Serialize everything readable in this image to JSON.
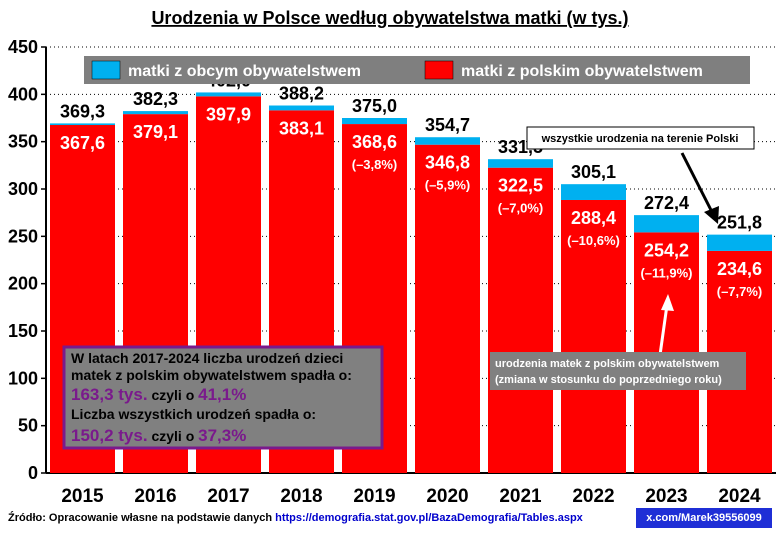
{
  "chart_data": {
    "type": "bar",
    "stacked": true,
    "title": "Urodzenia w Polsce według obywatelstwa matki (w tys.)",
    "ylim": [
      0,
      450
    ],
    "yticks": [
      "0",
      "50",
      "100",
      "150",
      "200",
      "250",
      "300",
      "350",
      "400",
      "450"
    ],
    "grid": true,
    "legend_position": "top",
    "categories": [
      "2015",
      "2016",
      "2017",
      "2018",
      "2019",
      "2020",
      "2021",
      "2022",
      "2023",
      "2024"
    ],
    "series": [
      {
        "name": "matki z polskim obywatelstwem",
        "color": "#ff0000",
        "values": [
          367.6,
          379.1,
          397.9,
          383.1,
          368.6,
          346.8,
          322.5,
          288.4,
          254.2,
          234.6
        ],
        "labels": [
          "367,6",
          "379,1",
          "397,9",
          "383,1",
          "368,6",
          "346,8",
          "322,5",
          "288,4",
          "254,2",
          "234,6"
        ]
      },
      {
        "name": "matki z obcym obywatelstwem",
        "color": "#00b0f0",
        "values": [
          1.7,
          3.2,
          4.1,
          5.1,
          6.4,
          7.9,
          9.0,
          16.7,
          18.2,
          17.2
        ]
      }
    ],
    "totals": [
      369.3,
      382.3,
      402.0,
      388.2,
      375.0,
      354.7,
      331.5,
      305.1,
      272.4,
      251.8
    ],
    "total_labels": [
      "369,3",
      "382,3",
      "402,0",
      "388,2",
      "375,0",
      "354,7",
      "331,5",
      "305,1",
      "272,4",
      "251,8"
    ],
    "changes": [
      "",
      "",
      "",
      "",
      "(–3,8%)",
      "(–5,9%)",
      "(–7,0%)",
      "(–10,6%)",
      "(–11,9%)",
      "(–7,7%)"
    ],
    "annotations": {
      "total_note": "wszystkie urodzenia na terenie Polski",
      "polish_note_line1": "urodzenia matek z polskim obywatelstwem",
      "polish_note_line2": "(zmiana w stosunku do poprzedniego roku)"
    },
    "summary": {
      "line1": "W latach 2017-2024 liczba urodzeń dzieci",
      "line2": "matek z polskim obywatelstwem spadła o:",
      "value1": "163,3 tys.",
      "mid1": " czyli o ",
      "pct1": "41,1%",
      "line4": "Liczba wszystkich urodzeń spadła o:",
      "value2": "150,2 tys.",
      "mid2": " czyli o ",
      "pct2": "37,3%"
    }
  },
  "footer": {
    "source_prefix": "Źródło: Opracowanie własne na podstawie danych ",
    "source_link": "https://demografia.stat.gov.pl/BazaDemografia/Tables.aspx",
    "handle": "x.com/Marek39556099"
  },
  "colors": {
    "polish": "#ff0000",
    "foreign": "#00b0f0",
    "legend_bg": "#7f7f7f",
    "summary_bg": "#808080",
    "summary_border": "#7a1a8c",
    "highlight": "#7a1a8c"
  }
}
